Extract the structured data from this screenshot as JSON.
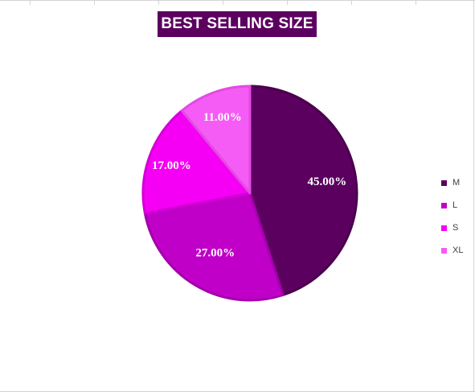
{
  "chart_data": {
    "type": "pie",
    "title": "BEST SELLING SIZE",
    "categories": [
      "M",
      "L",
      "S",
      "XL"
    ],
    "values": [
      45,
      27,
      17,
      11
    ],
    "data_labels": [
      "45.00%",
      "27.00%",
      "17.00%",
      "11.00%"
    ],
    "colors": [
      "#5c0060",
      "#c000c8",
      "#f500f5",
      "#f55cf5"
    ],
    "edge_colors": [
      "#4a004d",
      "#a400ab",
      "#d400d6",
      "#e24ae2"
    ],
    "legend_position": "right"
  }
}
